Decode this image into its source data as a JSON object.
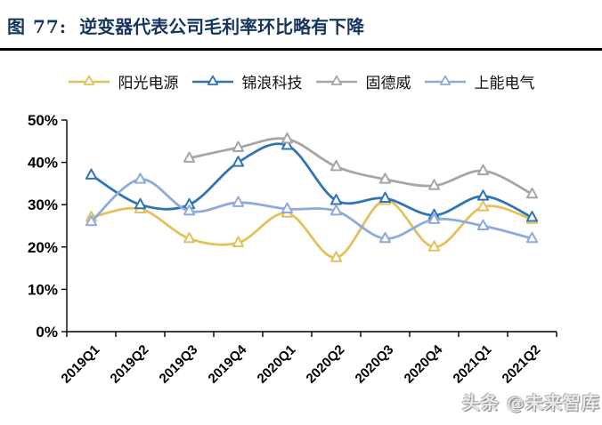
{
  "header": {
    "figure_label": "图 77:",
    "title": "逆变器代表公司毛利率环比略有下降"
  },
  "watermark": {
    "text": "头条 @未来智库"
  },
  "chart_data": {
    "type": "line",
    "title": "逆变器代表公司毛利率环比略有下降",
    "categories": [
      "2019Q1",
      "2019Q2",
      "2019Q3",
      "2019Q4",
      "2020Q1",
      "2020Q2",
      "2020Q3",
      "2020Q4",
      "2021Q1",
      "2021Q2"
    ],
    "series": [
      {
        "name": "阳光电源",
        "color": "#E3C15C",
        "values": [
          27,
          29,
          22,
          21,
          28,
          17.5,
          31,
          20,
          29.5,
          26.5
        ]
      },
      {
        "name": "锦浪科技",
        "color": "#2E75B6",
        "values": [
          37,
          30,
          30,
          40,
          44,
          31,
          31.5,
          27.5,
          32,
          27
        ]
      },
      {
        "name": "固德威",
        "color": "#A6A6A6",
        "values": [
          null,
          null,
          41,
          43.5,
          45.5,
          39,
          36,
          34.5,
          38,
          32.5
        ]
      },
      {
        "name": "上能电气",
        "color": "#8FAADC",
        "values": [
          26,
          36,
          28.5,
          30.5,
          29,
          28.5,
          22,
          26.5,
          25,
          22
        ]
      }
    ],
    "xlabel": "",
    "ylabel": "",
    "ylim": [
      0,
      50
    ],
    "y_tick_labels": [
      "50%",
      "40%",
      "30%",
      "20%",
      "10%",
      "0%"
    ],
    "y_tick_values": [
      50,
      40,
      30,
      20,
      10,
      0
    ],
    "grid": false,
    "legend_position": "top",
    "marker": "triangle-open",
    "axis_color": "#000000",
    "smooth": true
  }
}
